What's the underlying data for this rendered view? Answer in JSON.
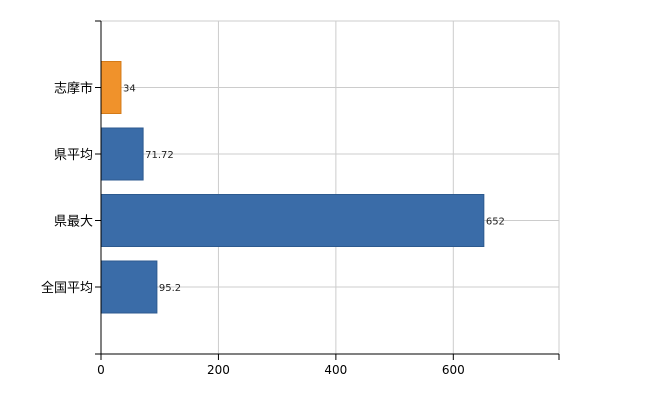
{
  "chart_data": {
    "type": "bar",
    "orientation": "horizontal",
    "categories": [
      "志摩市",
      "県平均",
      "県最大",
      "全国平均"
    ],
    "values": [
      34,
      71.72,
      652,
      95.2
    ],
    "data_labels": [
      "34",
      "71.72",
      "652",
      "95.2"
    ],
    "bar_colors": [
      "#f0922b",
      "#3a6ca8",
      "#3a6ca8",
      "#3a6ca8"
    ],
    "bar_stroke": "#2d5a8f",
    "highlight_stroke": "#d47a17",
    "xlim": [
      0,
      780
    ],
    "x_ticks": [
      0,
      200,
      400,
      600
    ],
    "grid": true,
    "title": "",
    "xlabel": "",
    "ylabel": ""
  }
}
